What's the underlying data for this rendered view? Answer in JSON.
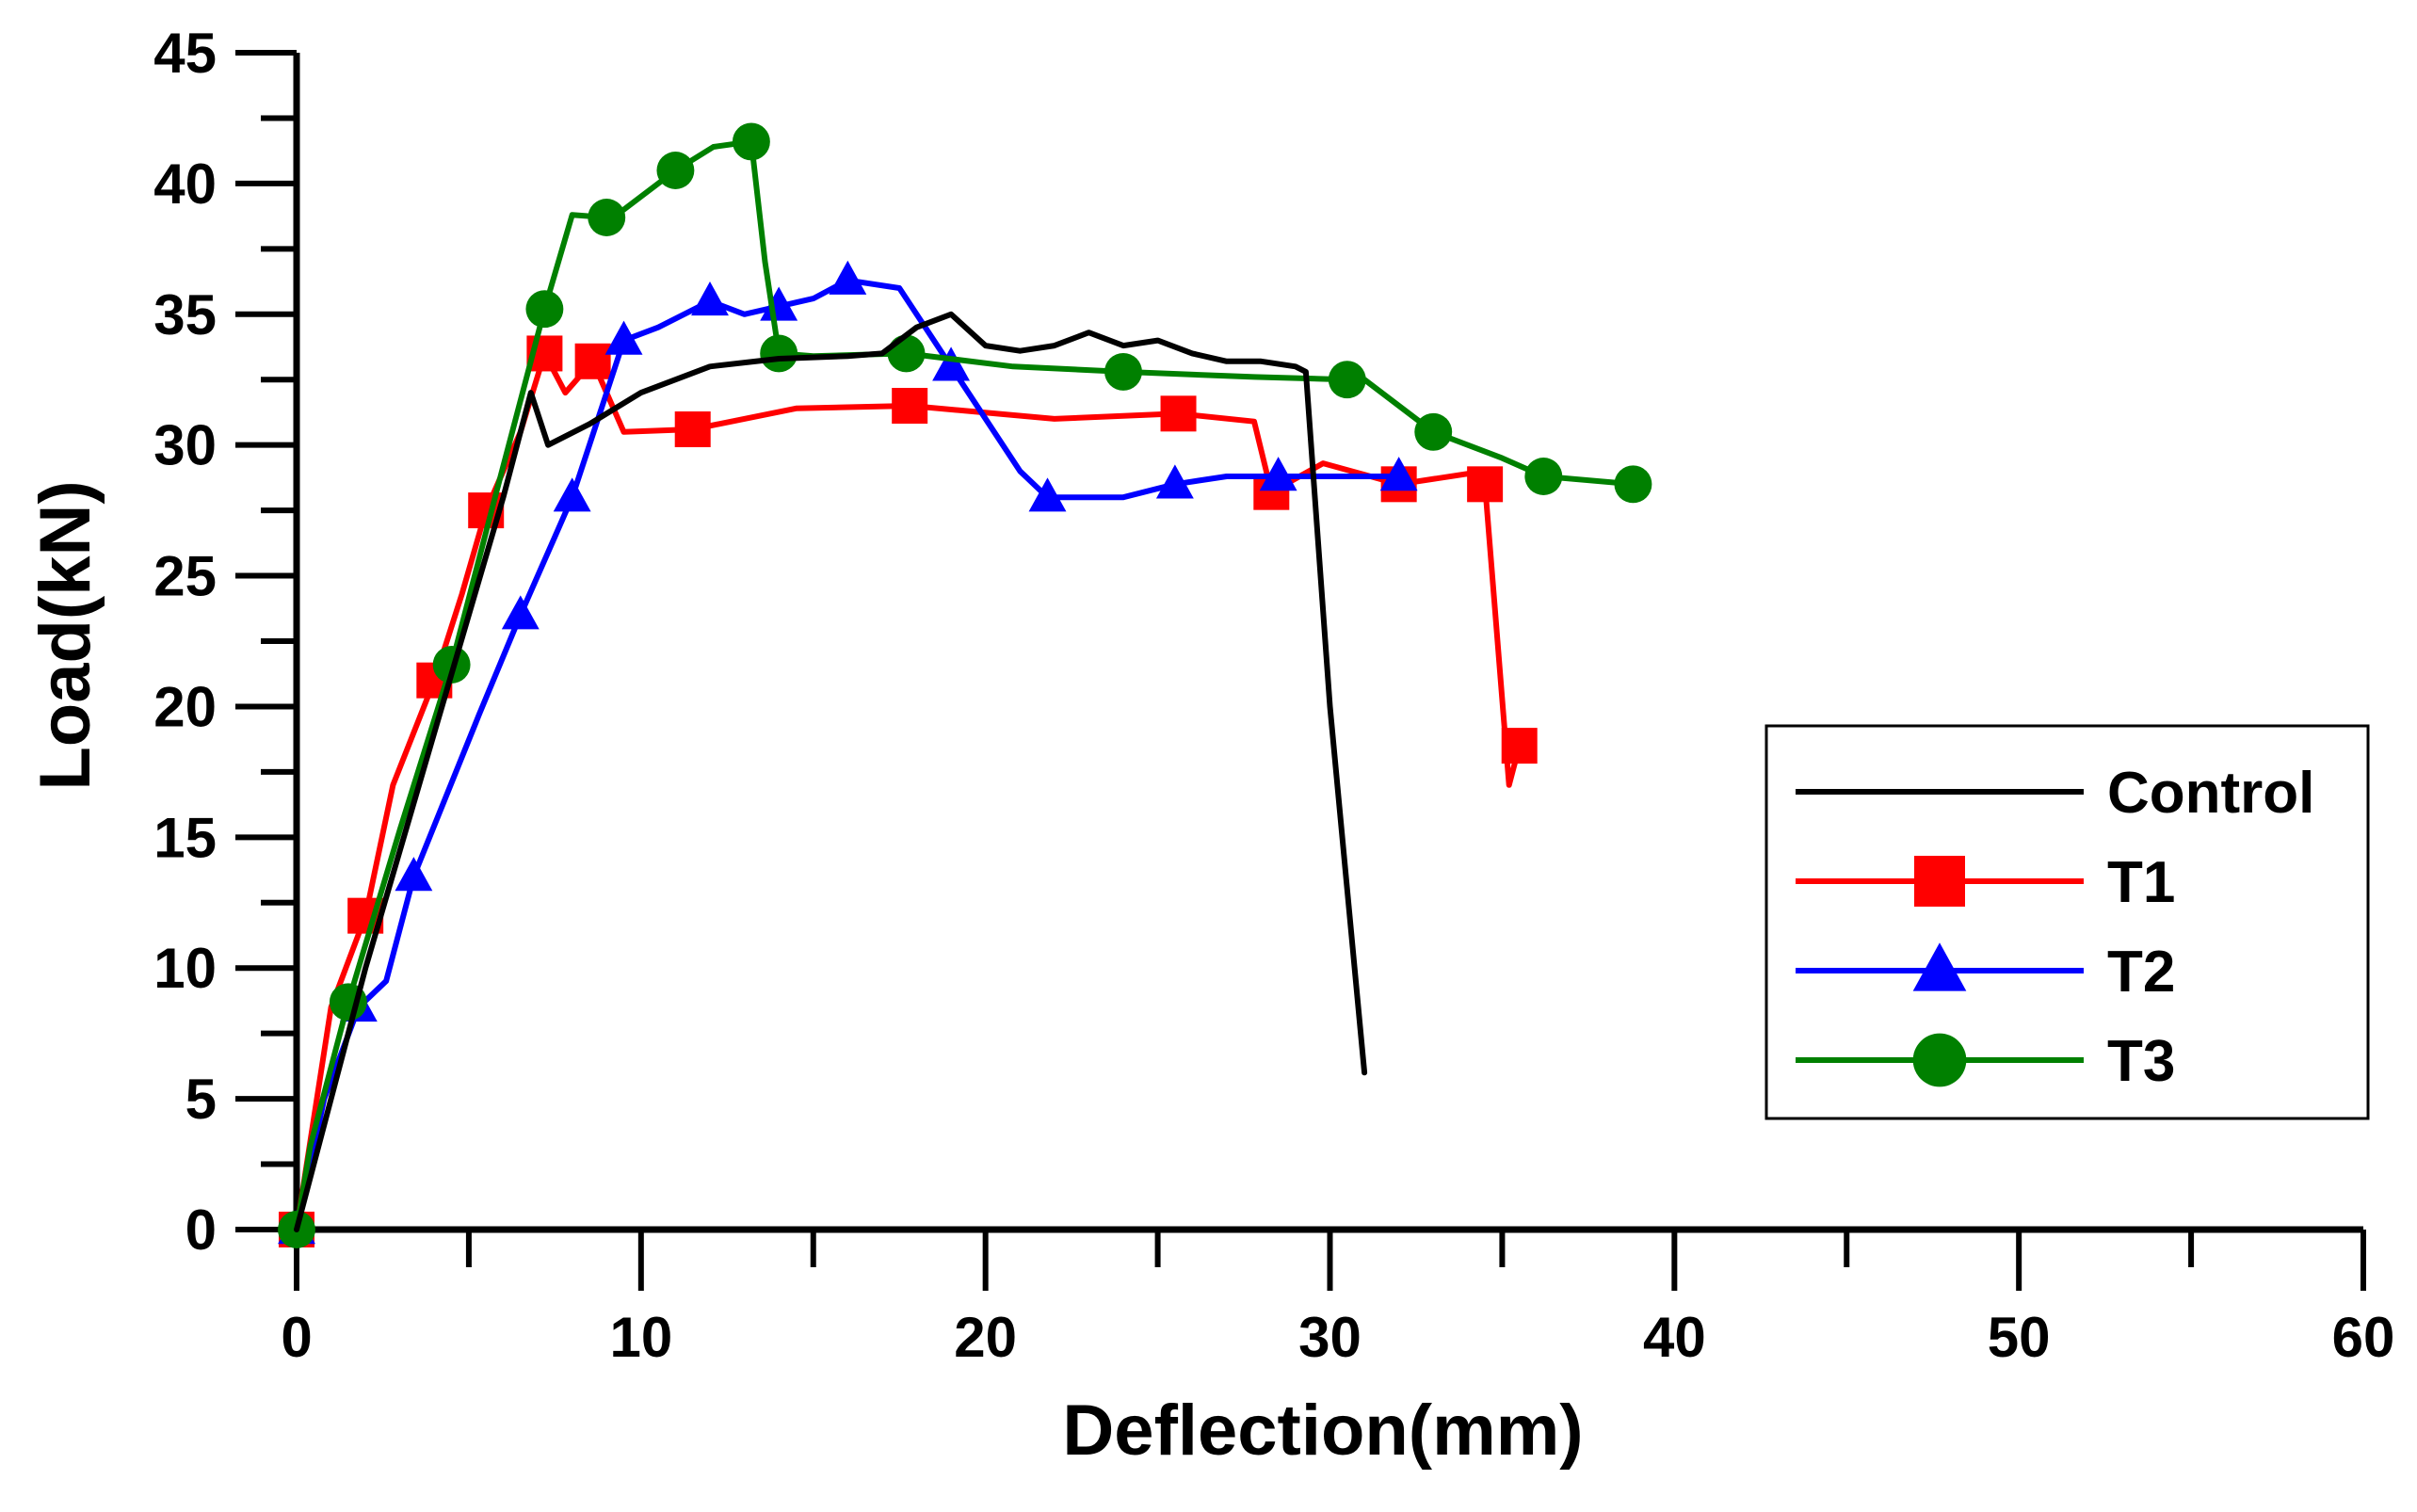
{
  "chart_data": {
    "type": "line",
    "title": "",
    "xlabel": "Deflection(mm)",
    "ylabel": "Load(kN)",
    "xlim": [
      0,
      60
    ],
    "ylim": [
      0,
      45
    ],
    "xticks": [
      0,
      10,
      20,
      30,
      40,
      50,
      60
    ],
    "yticks": [
      0,
      5,
      10,
      15,
      20,
      25,
      30,
      35,
      40,
      45
    ],
    "x_tick_labels": [
      "0",
      "10",
      "20",
      "30",
      "40",
      "50",
      "60"
    ],
    "y_tick_labels": [
      "0",
      "5",
      "10",
      "15",
      "20",
      "25",
      "30",
      "35",
      "40",
      "45"
    ],
    "grid": false,
    "legend_position": "right",
    "series": [
      {
        "name": "Control",
        "color": "#000000",
        "marker": "none",
        "x": [
          0,
          1,
          2,
          3,
          4,
          5,
          6,
          6.8,
          7.3,
          8.5,
          10,
          12,
          14,
          16,
          17,
          18,
          19,
          20,
          21,
          22,
          23,
          24,
          25,
          26,
          27,
          28,
          29,
          29.3,
          30,
          31
        ],
        "y": [
          0,
          5,
          10,
          14.5,
          19,
          23.5,
          28,
          32,
          30,
          30.8,
          32,
          33,
          33.3,
          33.4,
          33.5,
          34.5,
          35,
          33.8,
          33.6,
          33.8,
          34.3,
          33.8,
          34,
          33.5,
          33.2,
          33.2,
          33,
          32.8,
          20,
          6
        ]
      },
      {
        "name": "T1",
        "color": "#ff0000",
        "marker": "square",
        "x": [
          0,
          1,
          2,
          2.8,
          4,
          4.8,
          5.5,
          6.5,
          7.2,
          7.8,
          8.6,
          9.5,
          11.5,
          14.5,
          17.8,
          22,
          25.6,
          27.8,
          28.3,
          29.8,
          32,
          34,
          34.5,
          35.2,
          35.5
        ],
        "y": [
          0,
          8.5,
          12,
          17,
          21,
          24.3,
          27.5,
          30.5,
          33.5,
          32,
          33.2,
          30.5,
          30.6,
          31.4,
          31.5,
          31,
          31.2,
          30.9,
          28.2,
          29.3,
          28.5,
          28.9,
          28.5,
          17,
          18.5
        ]
      },
      {
        "name": "T2",
        "color": "#0000ff",
        "marker": "triangle",
        "x": [
          0,
          0.8,
          1.8,
          2.6,
          3.4,
          5.3,
          6.5,
          7.5,
          8,
          8.5,
          9.5,
          10.5,
          12,
          13,
          14,
          15,
          16,
          17.5,
          19,
          21,
          21.8,
          24,
          25.5,
          27,
          28.5,
          30,
          32
        ],
        "y": [
          0,
          5,
          8.5,
          9.5,
          13.5,
          19.7,
          23.5,
          26.5,
          28,
          30,
          34,
          34.5,
          35.5,
          35,
          35.3,
          35.6,
          36.3,
          36,
          33,
          29,
          28,
          28,
          28.5,
          28.8,
          28.8,
          28.8,
          28.8
        ]
      },
      {
        "name": "T3",
        "color": "#008000",
        "marker": "circle",
        "x": [
          0,
          0.4,
          1.5,
          3,
          4.5,
          5.8,
          7.2,
          8,
          9,
          9.4,
          11,
          12.1,
          13.2,
          13.6,
          14,
          15,
          17.7,
          20.8,
          24,
          27.8,
          30.5,
          31,
          33,
          35,
          36.2,
          38.8
        ],
        "y": [
          0,
          3.2,
          8.7,
          15.3,
          21.6,
          28.2,
          35.2,
          38.8,
          38.7,
          38.9,
          40.5,
          41.4,
          41.6,
          37,
          33.5,
          33.4,
          33.5,
          33,
          32.8,
          32.6,
          32.5,
          32.5,
          30.5,
          29.5,
          28.8,
          28.5
        ]
      }
    ]
  }
}
